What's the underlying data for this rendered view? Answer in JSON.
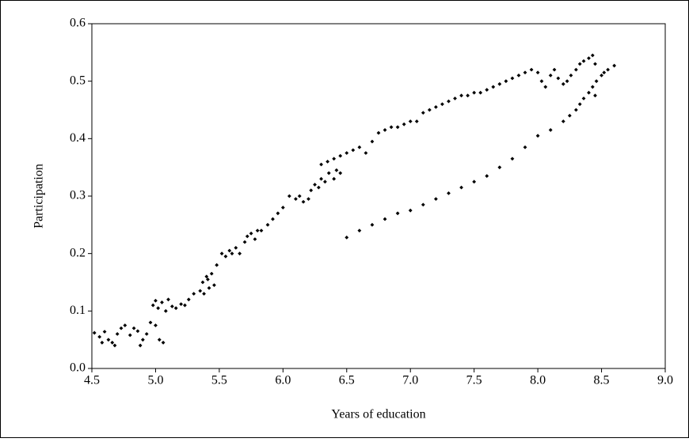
{
  "chart_data": {
    "type": "scatter",
    "x_label": "Years of education",
    "y_label": "Participation",
    "color": "#000000",
    "xlim": [
      4.5,
      9.0
    ],
    "xticks": [
      4.5,
      {
        "value": 5,
        "label": "5.0"
      },
      5.5,
      {
        "value": 6,
        "label": "6.0"
      },
      6.5,
      {
        "value": 7,
        "label": "7.0"
      },
      7.5,
      {
        "value": 8,
        "label": "8.0"
      },
      8.5,
      {
        "value": 9,
        "label": "9.0"
      }
    ],
    "ylim": [
      0,
      0.6
    ],
    "yticks": [
      {
        "value": 0,
        "label": "0.0"
      },
      0.1,
      0.2,
      0.3,
      0.4,
      0.5,
      0.6
    ],
    "x": [
      4.52,
      4.56,
      4.6,
      4.63,
      4.66,
      4.7,
      4.73,
      4.76,
      4.8,
      4.83,
      4.86,
      4.9,
      4.93,
      4.96,
      5.0,
      5.03,
      5.06,
      4.58,
      4.68,
      4.88,
      4.98,
      5.0,
      5.02,
      5.05,
      5.08,
      5.1,
      5.13,
      5.16,
      5.2,
      5.23,
      5.26,
      5.3,
      5.35,
      5.37,
      5.4,
      5.42,
      5.44,
      5.38,
      5.41,
      5.46,
      5.48,
      5.52,
      5.55,
      5.58,
      5.6,
      5.63,
      5.66,
      5.7,
      5.72,
      5.75,
      5.78,
      5.8,
      5.83,
      5.88,
      5.92,
      5.96,
      6.0,
      6.05,
      6.1,
      6.13,
      6.16,
      6.2,
      6.22,
      6.25,
      6.28,
      6.3,
      6.33,
      6.36,
      6.4,
      6.42,
      6.45,
      6.3,
      6.35,
      6.4,
      6.45,
      6.5,
      6.55,
      6.6,
      6.65,
      6.7,
      6.75,
      6.8,
      6.85,
      6.9,
      6.95,
      7.0,
      7.05,
      7.1,
      7.15,
      7.2,
      7.25,
      7.3,
      7.35,
      7.4,
      7.45,
      7.5,
      7.55,
      7.6,
      7.65,
      7.7,
      7.75,
      7.8,
      7.85,
      7.9,
      7.95,
      8.0,
      8.03,
      8.06,
      8.1,
      8.13,
      8.16,
      8.2,
      8.23,
      8.26,
      8.3,
      8.33,
      8.36,
      8.4,
      8.43,
      8.45,
      6.5,
      6.6,
      6.7,
      6.8,
      6.9,
      7.0,
      7.1,
      7.2,
      7.3,
      7.4,
      7.5,
      7.6,
      7.7,
      7.8,
      7.9,
      8.0,
      8.1,
      8.2,
      8.25,
      8.3,
      8.33,
      8.36,
      8.4,
      8.43,
      8.46,
      8.5,
      8.52,
      8.55,
      8.6,
      8.45
    ],
    "values": [
      0.062,
      0.055,
      0.064,
      0.05,
      0.045,
      0.06,
      0.07,
      0.075,
      0.058,
      0.07,
      0.065,
      0.05,
      0.06,
      0.08,
      0.075,
      0.05,
      0.045,
      0.045,
      0.04,
      0.04,
      0.11,
      0.118,
      0.105,
      0.115,
      0.1,
      0.12,
      0.108,
      0.105,
      0.112,
      0.11,
      0.12,
      0.13,
      0.135,
      0.15,
      0.16,
      0.14,
      0.165,
      0.13,
      0.155,
      0.145,
      0.18,
      0.2,
      0.195,
      0.205,
      0.2,
      0.21,
      0.2,
      0.22,
      0.23,
      0.235,
      0.225,
      0.24,
      0.24,
      0.25,
      0.26,
      0.27,
      0.28,
      0.3,
      0.295,
      0.3,
      0.29,
      0.295,
      0.31,
      0.32,
      0.315,
      0.33,
      0.325,
      0.34,
      0.33,
      0.345,
      0.34,
      0.355,
      0.36,
      0.365,
      0.37,
      0.375,
      0.38,
      0.385,
      0.375,
      0.395,
      0.41,
      0.415,
      0.42,
      0.42,
      0.425,
      0.43,
      0.43,
      0.445,
      0.45,
      0.455,
      0.46,
      0.465,
      0.47,
      0.475,
      0.475,
      0.48,
      0.48,
      0.485,
      0.49,
      0.495,
      0.5,
      0.505,
      0.51,
      0.515,
      0.52,
      0.515,
      0.5,
      0.49,
      0.51,
      0.52,
      0.505,
      0.495,
      0.5,
      0.51,
      0.52,
      0.53,
      0.535,
      0.54,
      0.545,
      0.53,
      0.228,
      0.24,
      0.25,
      0.26,
      0.27,
      0.275,
      0.285,
      0.295,
      0.305,
      0.315,
      0.325,
      0.335,
      0.35,
      0.365,
      0.385,
      0.405,
      0.415,
      0.43,
      0.44,
      0.45,
      0.46,
      0.47,
      0.48,
      0.49,
      0.5,
      0.51,
      0.515,
      0.52,
      0.527,
      0.475
    ]
  }
}
